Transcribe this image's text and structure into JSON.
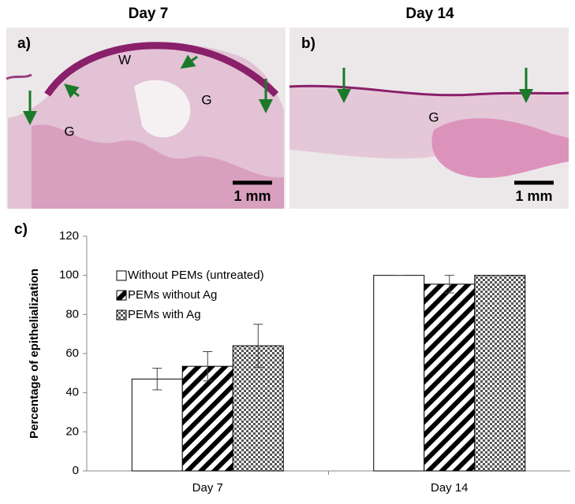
{
  "panels": [
    {
      "header": "Day 7",
      "label": "a)",
      "annotations": [
        "W",
        "G",
        "G"
      ],
      "scale_bar": "1 mm"
    },
    {
      "header": "Day 14",
      "label": "b)",
      "annotations": [
        "G"
      ],
      "scale_bar": "1 mm"
    }
  ],
  "chart_data": {
    "type": "bar",
    "panel_label": "c)",
    "y_label": "Percentage of epithelialization",
    "categories": [
      "Day 7",
      "Day 14"
    ],
    "series": [
      {
        "name": "Without PEMs (untreated)",
        "color": "#ffffff",
        "hatch": "none",
        "values": [
          47,
          100
        ],
        "errors": [
          5.5,
          0
        ]
      },
      {
        "name": "PEMs without Ag",
        "color": "#ffffff",
        "hatch": "diagonal",
        "values": [
          53.5,
          95.5
        ],
        "errors": [
          7.5,
          4.5
        ]
      },
      {
        "name": "PEMs with Ag",
        "color": "#ffffff",
        "hatch": "crosshatch",
        "values": [
          64,
          100
        ],
        "errors": [
          11,
          0
        ]
      }
    ],
    "ylim": [
      0,
      120
    ],
    "yticks": [
      0,
      20,
      40,
      60,
      80,
      100,
      120
    ],
    "grid": false,
    "legend": "upper left"
  }
}
